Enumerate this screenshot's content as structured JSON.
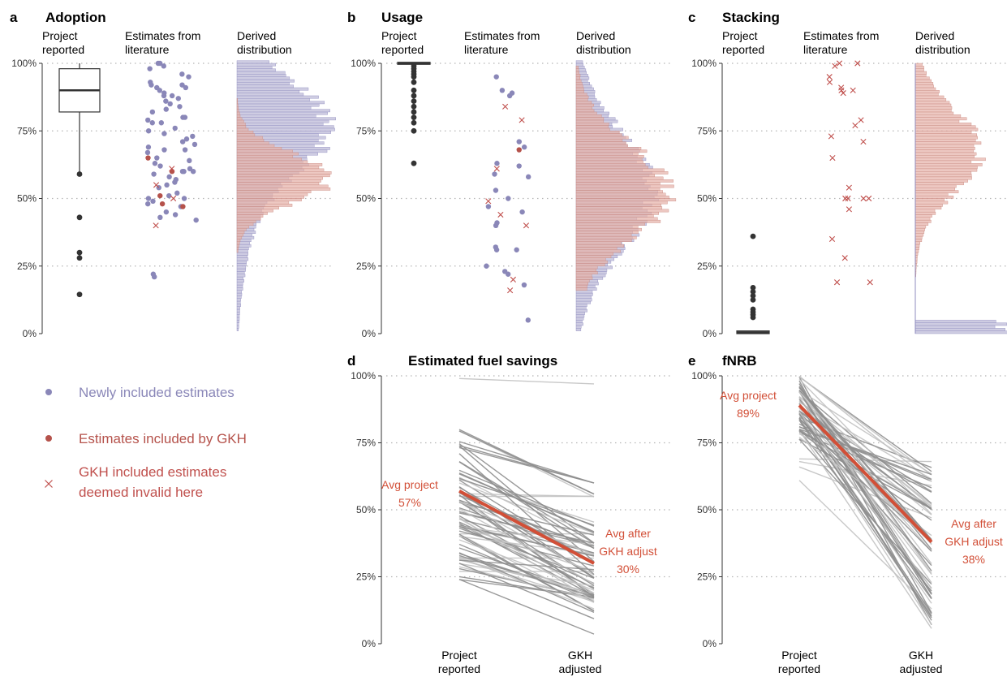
{
  "colors": {
    "newly": "#8a87b8",
    "gkh": "#b5524b",
    "invalid": "#c0504d",
    "annot": "#d24f37",
    "black": "#333333",
    "slope": "#8e8e8e",
    "slope_light": "#c2c2c2"
  },
  "y_ticks": [
    "0%",
    "25%",
    "50%",
    "75%",
    "100%"
  ],
  "legend": {
    "newly": "Newly included estimates",
    "gkh": "Estimates included by GKH",
    "invalid_l1": "GKH included estimates",
    "invalid_l2": "deemed invalid here"
  },
  "panels_top": [
    {
      "letter": "a",
      "title": "Adoption",
      "col1": [
        "Project",
        "reported"
      ],
      "col2": [
        "Estimates from",
        "literature"
      ],
      "col3": [
        "Derived",
        "distribution"
      ]
    },
    {
      "letter": "b",
      "title": "Usage",
      "col1": [
        "Project",
        "reported"
      ],
      "col2": [
        "Estimates from",
        "literature"
      ],
      "col3": [
        "Derived",
        "distribution"
      ]
    },
    {
      "letter": "c",
      "title": "Stacking",
      "col1": [
        "Project",
        "reported"
      ],
      "col2": [
        "Estimates from",
        "literature"
      ],
      "col3": [
        "Derived",
        "distribution"
      ]
    }
  ],
  "panels_bottom": [
    {
      "letter": "d",
      "title": "Estimated fuel savings",
      "cat1": [
        "Project",
        "reported"
      ],
      "cat2": [
        "GKH",
        "adjusted"
      ],
      "annot_left": [
        "Avg project",
        "57%"
      ],
      "annot_right": [
        "Avg after",
        "GKH adjust",
        "30%"
      ]
    },
    {
      "letter": "e",
      "title": "fNRB",
      "cat1": [
        "Project",
        "reported"
      ],
      "cat2": [
        "GKH",
        "adjusted"
      ],
      "annot_left": [
        "Avg project",
        "89%"
      ],
      "annot_right": [
        "Avg after",
        "GKH adjust",
        "38%"
      ]
    }
  ],
  "chart_data": [
    {
      "type": "scatter",
      "panel": "a",
      "title": "Adoption",
      "ylim": [
        0,
        100
      ],
      "project_box": {
        "q1": 82,
        "median": 90,
        "q3": 98,
        "whisker_low": 59,
        "whisker_high": 100
      },
      "project_outliers": [
        59,
        43,
        30,
        28,
        14.5
      ],
      "newly_included": [
        100,
        100,
        99,
        98,
        96,
        95,
        93,
        92,
        92,
        91,
        91,
        90,
        89,
        88,
        88,
        87,
        86,
        85,
        84,
        83,
        82,
        80,
        80,
        79,
        78,
        78,
        76,
        75,
        74,
        73,
        72,
        71,
        70,
        69,
        68,
        68,
        67,
        65,
        64,
        63,
        62,
        61,
        60,
        60,
        60,
        59,
        58,
        57,
        56,
        55,
        54,
        52,
        51,
        50,
        50,
        49,
        48,
        47,
        45,
        44,
        43,
        42,
        22,
        21
      ],
      "gkh_included": [
        65,
        60,
        51,
        48,
        47
      ],
      "gkh_invalid": [
        61,
        55,
        50,
        40
      ],
      "dist_newly_mean": 76,
      "dist_gkh_mean": 57
    },
    {
      "type": "scatter",
      "panel": "b",
      "title": "Usage",
      "ylim": [
        0,
        100
      ],
      "project_box": {
        "q1": 100,
        "median": 100,
        "q3": 100
      },
      "project_outliers": [
        99,
        98,
        97,
        96,
        95,
        93,
        90,
        88,
        86,
        84,
        82,
        80,
        78,
        75,
        63
      ],
      "newly_included": [
        95,
        90,
        89,
        88,
        71,
        69,
        63,
        62,
        59,
        58,
        53,
        50,
        47,
        45,
        41,
        40,
        32,
        31,
        31,
        25,
        23,
        22,
        18,
        5
      ],
      "gkh_included": [
        68
      ],
      "gkh_invalid": [
        84,
        79,
        61,
        49,
        44,
        40,
        20,
        16
      ],
      "dist_newly_mean": 52,
      "dist_gkh_mean": 52
    },
    {
      "type": "scatter",
      "panel": "c",
      "title": "Stacking",
      "ylim": [
        0,
        100
      ],
      "project_box": {
        "q1": 0,
        "median": 0.5,
        "q3": 1
      },
      "project_outliers": [
        36,
        17,
        15.5,
        14,
        12.5,
        9,
        8,
        7,
        6
      ],
      "gkh_invalid": [
        100,
        100,
        99,
        95,
        93,
        91,
        90,
        90,
        89,
        79,
        77,
        73,
        71,
        65,
        54,
        50,
        50,
        50,
        50,
        46,
        35,
        28,
        19,
        19
      ],
      "dist_gkh_mean": 67
    },
    {
      "type": "line",
      "panel": "d",
      "title": "Estimated fuel savings",
      "categories": [
        "Project reported",
        "GKH adjusted"
      ],
      "ylim": [
        0,
        100
      ],
      "average": {
        "project": 57,
        "adjusted": 30
      }
    },
    {
      "type": "line",
      "panel": "e",
      "title": "fNRB",
      "categories": [
        "Project reported",
        "GKH adjusted"
      ],
      "ylim": [
        0,
        100
      ],
      "average": {
        "project": 89,
        "adjusted": 38
      }
    }
  ]
}
